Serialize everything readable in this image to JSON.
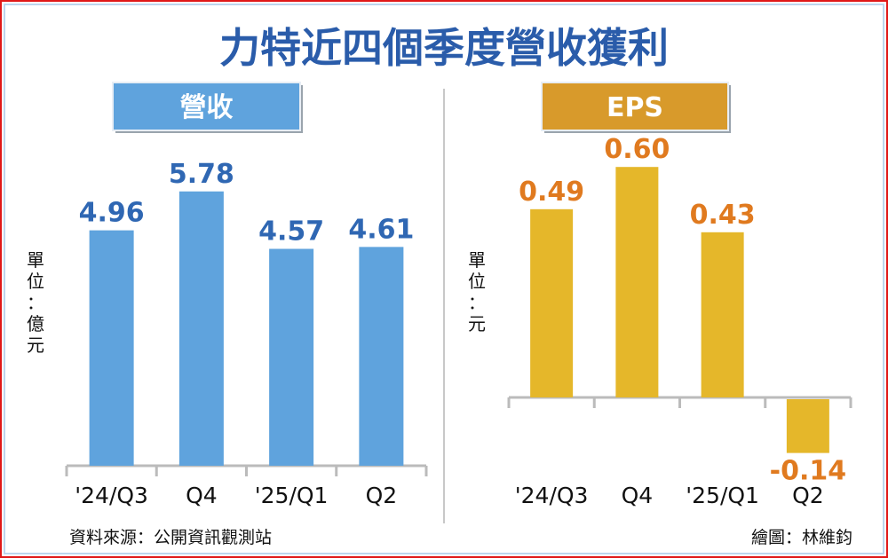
{
  "title": "力特近四個季度營收獲利",
  "source": "資料來源：公開資訊觀測站",
  "credit": "繪圖：林維鈞",
  "colors": {
    "revenue_bar": "#5fa3dd",
    "revenue_label": "#2f67b3",
    "eps_bar": "#e5b72a",
    "eps_label": "#e07a1f",
    "eps_header": "#d89a2b",
    "title": "#2a5caa"
  },
  "chart_data": [
    {
      "type": "bar",
      "title": "營收",
      "unit": "單位：億元",
      "categories": [
        "'24/Q3",
        "Q4",
        "'25/Q1",
        "Q2"
      ],
      "values": [
        4.96,
        5.78,
        4.57,
        4.61
      ],
      "value_labels": [
        "4.96",
        "5.78",
        "4.57",
        "4.61"
      ],
      "ylim": [
        0,
        6.1
      ],
      "grid": false
    },
    {
      "type": "bar",
      "title": "EPS",
      "unit": "單位：元",
      "categories": [
        "'24/Q3",
        "Q4",
        "'25/Q1",
        "Q2"
      ],
      "values": [
        0.49,
        0.6,
        0.43,
        -0.14
      ],
      "value_labels": [
        "0.49",
        "0.60",
        "0.43",
        "-0.14"
      ],
      "ylim": [
        -0.2,
        0.7
      ],
      "grid": false
    }
  ]
}
